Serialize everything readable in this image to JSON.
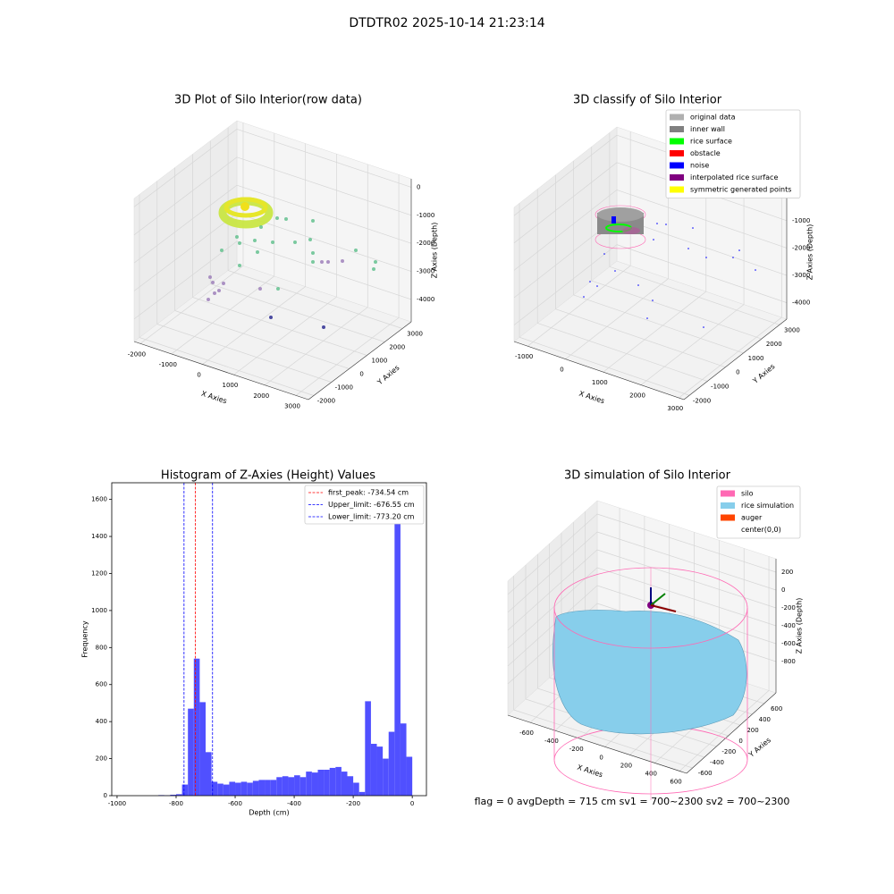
{
  "title": "DTDTR02 2025-10-14 21:23:14",
  "footer": "flag = 0     avgDepth = 715 cm  sv1 = 700~2300  sv2 = 700~2300",
  "chart_data": [
    {
      "type": "scatter3d",
      "title": "3D Plot of Silo Interior(row data)",
      "xlabel": "X Axies",
      "ylabel": "Y Axies",
      "zlabel": "Z Axies (Depth)",
      "xlim": [
        -2200,
        3400
      ],
      "ylim": [
        -2300,
        3500
      ],
      "zlim": [
        -4800,
        300
      ],
      "xticks": [
        -2000,
        -1000,
        0,
        1000,
        2000,
        3000
      ],
      "yticks": [
        -2000,
        -1000,
        0,
        1000,
        2000,
        3000
      ],
      "zticks": [
        -4000,
        -3000,
        -2000,
        -1000,
        0
      ]
    },
    {
      "type": "scatter3d",
      "title": "3D classify of Silo Interior",
      "xlabel": "X Axies",
      "ylabel": "Y Axies",
      "zlabel": "Z Axies (Depth)",
      "xlim": [
        -1360,
        3134
      ],
      "ylim": [
        -2300,
        3400
      ],
      "zlim": [
        -4600,
        300
      ],
      "xticks": [
        -1000,
        0,
        1000,
        2000,
        3000
      ],
      "yticks": [
        -2000,
        -1000,
        0,
        1000,
        2000,
        3000
      ],
      "zticks": [
        -4000,
        -3000,
        -2000,
        -1000,
        0
      ],
      "legend": [
        {
          "name": "original data",
          "color": "#b0b0b0"
        },
        {
          "name": "inner wall",
          "color": "#808080"
        },
        {
          "name": "rice surface",
          "color": "#00ff00"
        },
        {
          "name": "obstacle",
          "color": "#ff0000"
        },
        {
          "name": "noise",
          "color": "#0000ff"
        },
        {
          "name": "interpolated rice surface",
          "color": "#800080"
        },
        {
          "name": "symmetric generated points",
          "color": "#ffff00"
        }
      ]
    },
    {
      "type": "histogram",
      "title": "Histogram of Z-Axies (Height) Values",
      "xlabel": "Depth (cm)",
      "ylabel": "Frequency",
      "color": "#5050ff",
      "bins": [
        -1000,
        -980,
        -960,
        -940,
        -920,
        -900,
        -880,
        -860,
        -840,
        -820,
        -800,
        -780,
        -760,
        -740,
        -720,
        -700,
        -680,
        -660,
        -640,
        -620,
        -600,
        -580,
        -560,
        -540,
        -520,
        -500,
        -480,
        -460,
        -440,
        -420,
        -400,
        -380,
        -360,
        -340,
        -320,
        -300,
        -280,
        -260,
        -240,
        -220,
        -200,
        -180,
        -160,
        -140,
        -120,
        -100,
        -80,
        -60,
        -40,
        -20,
        0
      ],
      "values": [
        0,
        0,
        0,
        0,
        0,
        0,
        0,
        3,
        2,
        5,
        8,
        60,
        470,
        740,
        505,
        235,
        75,
        65,
        60,
        75,
        70,
        75,
        70,
        80,
        85,
        85,
        85,
        100,
        105,
        100,
        110,
        100,
        130,
        125,
        140,
        140,
        150,
        155,
        130,
        105,
        70,
        20,
        510,
        280,
        265,
        200,
        345,
        1610,
        390,
        210
      ],
      "xlim": [
        -1018,
        48
      ],
      "ylim": [
        0,
        1690
      ],
      "xticks": [
        -1000,
        -800,
        -600,
        -400,
        -200,
        0
      ],
      "yticks": [
        0,
        200,
        400,
        600,
        800,
        1000,
        1200,
        1400,
        1600
      ],
      "vlines": [
        {
          "name": "first_peak: -734.54 cm",
          "value": -734.54,
          "color": "#ff0000"
        },
        {
          "name": "Upper_limit: -676.55 cm",
          "value": -676.55,
          "color": "#0000ff"
        },
        {
          "name": "Lower_limit: -773.20 cm",
          "value": -773.2,
          "color": "#0000ff"
        }
      ]
    },
    {
      "type": "surface3d",
      "title": "3D simulation of Silo Interior",
      "xlabel": "X Axies",
      "ylabel": "Y Axies",
      "zlabel": "Z Axies (Depth)",
      "xlim": [
        -780,
        657
      ],
      "ylim": [
        -700,
        800
      ],
      "zlim": [
        -1150,
        350
      ],
      "xticks": [
        -600,
        -400,
        -200,
        0,
        200,
        400,
        600
      ],
      "yticks": [
        -600,
        -400,
        -200,
        0,
        200,
        400,
        600
      ],
      "zticks": [
        -800,
        -600,
        -400,
        -200,
        0,
        200
      ],
      "legend": [
        {
          "name": "silo",
          "color": "#ff69b4"
        },
        {
          "name": "rice simulation",
          "color": "#87ceeb"
        },
        {
          "name": "auger",
          "color": "#ff4500"
        },
        {
          "name": "center(0,0)",
          "color": "#ffffff"
        }
      ]
    }
  ]
}
